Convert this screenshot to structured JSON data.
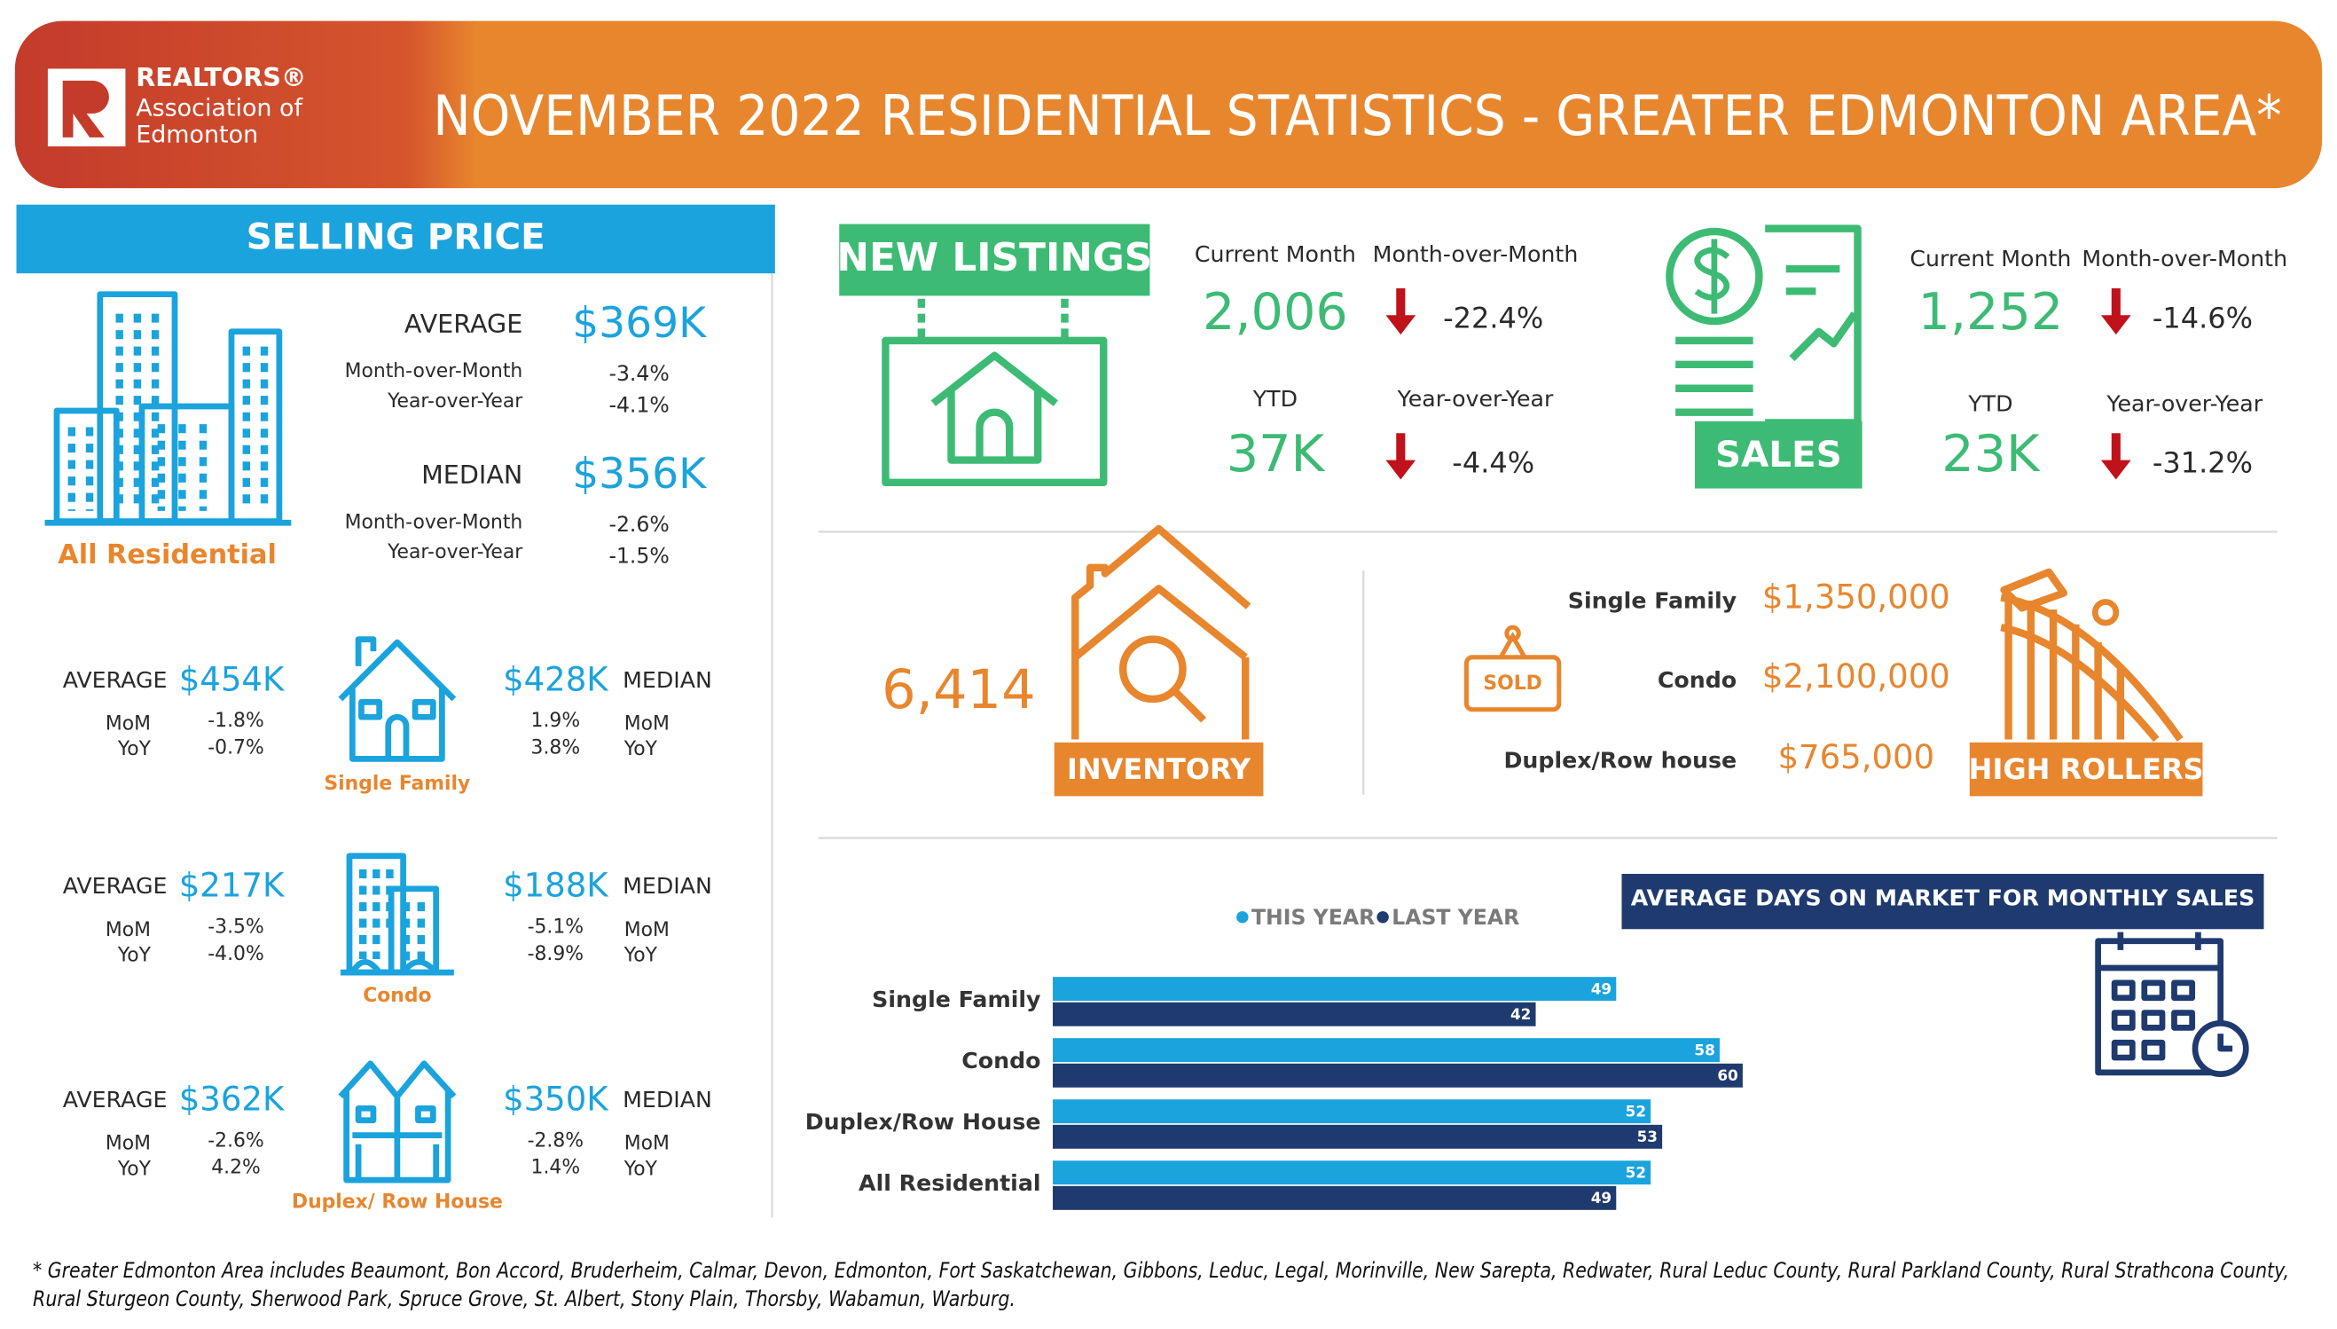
{
  "header": {
    "logo": {
      "brand": "REALTORS®",
      "line1": "Association of",
      "line2": "Edmonton"
    },
    "title": "NOVEMBER 2022 RESIDENTIAL STATISTICS - GREATER EDMONTON AREA*"
  },
  "selling_price": {
    "title": "SELLING PRICE",
    "all_residential": {
      "label": "All Residential",
      "average_label": "AVERAGE",
      "average": "$369K",
      "average_mom_label": "Month-over-Month",
      "average_mom": "-3.4%",
      "average_yoy_label": "Year-over-Year",
      "average_yoy": "-4.1%",
      "median_label": "MEDIAN",
      "median": "$356K",
      "median_mom_label": "Month-over-Month",
      "median_mom": "-2.6%",
      "median_yoy_label": "Year-over-Year",
      "median_yoy": "-1.5%"
    },
    "types": [
      {
        "label": "Single Family",
        "average_label": "AVERAGE",
        "average": "$454K",
        "average_mom_label": "MoM",
        "average_mom": "-1.8%",
        "average_yoy_label": "YoY",
        "average_yoy": "-0.7%",
        "median_label": "MEDIAN",
        "median": "$428K",
        "median_mom_label": "MoM",
        "median_mom": "1.9%",
        "median_yoy_label": "YoY",
        "median_yoy": "3.8%"
      },
      {
        "label": "Condo",
        "average_label": "AVERAGE",
        "average": "$217K",
        "average_mom_label": "MoM",
        "average_mom": "-3.5%",
        "average_yoy_label": "YoY",
        "average_yoy": "-4.0%",
        "median_label": "MEDIAN",
        "median": "$188K",
        "median_mom_label": "MoM",
        "median_mom": "-5.1%",
        "median_yoy_label": "YoY",
        "median_yoy": "-8.9%"
      },
      {
        "label": "Duplex/ Row House",
        "average_label": "AVERAGE",
        "average": "$362K",
        "average_mom_label": "MoM",
        "average_mom": "-2.6%",
        "average_yoy_label": "YoY",
        "average_yoy": "4.2%",
        "median_label": "MEDIAN",
        "median": "$350K",
        "median_mom_label": "MoM",
        "median_mom": "-2.8%",
        "median_yoy_label": "YoY",
        "median_yoy": "1.4%"
      }
    ]
  },
  "new_listings": {
    "title": "NEW  LISTINGS",
    "current_month_label": "Current Month",
    "current_month": "2,006",
    "mom_label": "Month-over-Month",
    "mom": "-22.4%",
    "ytd_label": "YTD",
    "ytd": "37K",
    "yoy_label": "Year-over-Year",
    "yoy": "-4.4%"
  },
  "sales": {
    "title": "SALES",
    "current_month_label": "Current Month",
    "current_month": "1,252",
    "mom_label": "Month-over-Month",
    "mom": "-14.6%",
    "ytd_label": "YTD",
    "ytd": "23K",
    "yoy_label": "Year-over-Year",
    "yoy": "-31.2%"
  },
  "inventory": {
    "value": "6,414",
    "label": "INVENTORY"
  },
  "high_rollers": {
    "label": "HIGH ROLLERS",
    "sold_sign": "SOLD",
    "rows": [
      {
        "type": "Single Family",
        "price": "$1,350,000"
      },
      {
        "type": "Condo",
        "price": "$2,100,000"
      },
      {
        "type": "Duplex/Row house",
        "price": "$765,000"
      }
    ]
  },
  "chart_data": {
    "type": "bar",
    "orientation": "horizontal",
    "title": "AVERAGE DAYS ON MARKET FOR MONTHLY SALES",
    "categories": [
      "Single Family",
      "Condo",
      "Duplex/Row House",
      "All Residential"
    ],
    "series": [
      {
        "name": "THIS YEAR",
        "color": "#1ba3dd",
        "values": [
          49,
          58,
          52,
          52
        ]
      },
      {
        "name": "LAST YEAR",
        "color": "#1f3a6e",
        "values": [
          42,
          60,
          53,
          49
        ]
      }
    ]
  },
  "footnote": {
    "lines": [
      "* Greater Edmonton Area includes Beaumont, Bon Accord, Bruderheim, Calmar, Devon, Edmonton, Fort Saskatchewan, Gibbons, Leduc, Legal, Morinville, New Sarepta, Redwater, Rural Leduc County, Rural Parkland County, Rural Strathcona County,",
      "Rural Sturgeon County, Sherwood Park, Spruce Grove, St. Albert, Stony Plain, Thorsby, Wabamun, Warburg."
    ]
  }
}
